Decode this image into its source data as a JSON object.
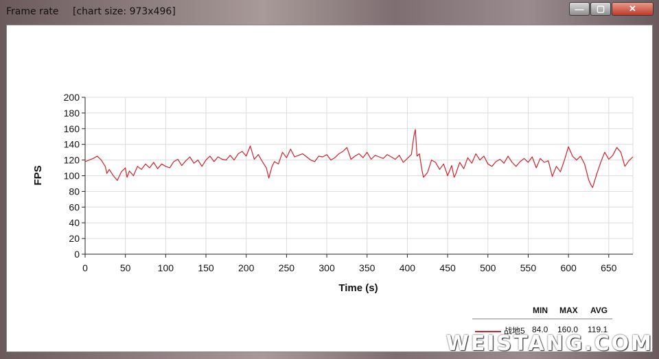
{
  "window": {
    "title": "Frame rate",
    "chart_size_label": "[chart size: 973x496]",
    "minimize_glyph": "—",
    "maximize_glyph": "▢",
    "close_glyph": "✕"
  },
  "chart_data": {
    "type": "line",
    "title": "",
    "xlabel": "Time (s)",
    "ylabel": "FPS",
    "xlim": [
      0,
      680
    ],
    "ylim": [
      0,
      200
    ],
    "xticks": [
      0,
      50,
      100,
      150,
      200,
      250,
      300,
      350,
      400,
      450,
      500,
      550,
      600,
      650
    ],
    "yticks": [
      0,
      20,
      40,
      60,
      80,
      100,
      120,
      140,
      160,
      180,
      200
    ],
    "grid": true,
    "series": [
      {
        "name": "战地5",
        "color": "#d0202a",
        "x": [
          0,
          5,
          10,
          15,
          20,
          25,
          27,
          30,
          35,
          40,
          45,
          50,
          52,
          55,
          60,
          65,
          70,
          75,
          80,
          85,
          90,
          95,
          100,
          105,
          110,
          115,
          120,
          125,
          130,
          135,
          140,
          145,
          150,
          155,
          160,
          165,
          170,
          175,
          180,
          185,
          190,
          195,
          200,
          205,
          210,
          215,
          220,
          225,
          228,
          232,
          235,
          240,
          245,
          250,
          255,
          260,
          265,
          270,
          275,
          280,
          285,
          290,
          295,
          300,
          305,
          310,
          315,
          320,
          325,
          330,
          335,
          340,
          345,
          350,
          355,
          360,
          365,
          370,
          375,
          380,
          385,
          390,
          395,
          400,
          405,
          408,
          410,
          412,
          415,
          418,
          420,
          425,
          430,
          435,
          440,
          445,
          450,
          455,
          458,
          460,
          465,
          470,
          475,
          480,
          485,
          490,
          495,
          500,
          505,
          510,
          515,
          520,
          525,
          530,
          535,
          540,
          545,
          550,
          555,
          560,
          565,
          570,
          575,
          580,
          585,
          590,
          595,
          600,
          605,
          610,
          615,
          620,
          625,
          628,
          630,
          635,
          640,
          645,
          650,
          655,
          660,
          665,
          670,
          675,
          680
        ],
        "y": [
          118,
          120,
          122,
          125,
          120,
          112,
          103,
          108,
          100,
          94,
          105,
          110,
          98,
          106,
          100,
          112,
          108,
          115,
          110,
          117,
          109,
          115,
          112,
          110,
          118,
          121,
          113,
          119,
          124,
          116,
          120,
          112,
          120,
          125,
          118,
          124,
          121,
          120,
          126,
          120,
          128,
          131,
          125,
          138,
          121,
          127,
          118,
          110,
          97,
          112,
          118,
          115,
          130,
          123,
          134,
          124,
          126,
          128,
          124,
          120,
          118,
          125,
          124,
          127,
          120,
          123,
          128,
          131,
          136,
          121,
          125,
          128,
          123,
          130,
          121,
          126,
          124,
          122,
          127,
          124,
          121,
          126,
          117,
          122,
          127,
          150,
          159,
          125,
          128,
          108,
          98,
          104,
          120,
          117,
          108,
          115,
          100,
          113,
          98,
          102,
          117,
          109,
          123,
          116,
          128,
          120,
          125,
          115,
          112,
          118,
          121,
          116,
          125,
          117,
          112,
          118,
          122,
          117,
          124,
          110,
          122,
          117,
          119,
          99,
          112,
          105,
          120,
          137,
          125,
          120,
          125,
          115,
          95,
          88,
          85,
          102,
          117,
          130,
          121,
          126,
          136,
          130,
          112,
          119,
          124
        ],
        "min": "84.0",
        "max": "160.0",
        "avg": "119.1"
      }
    ]
  },
  "legend": {
    "col_min": "MIN",
    "col_max": "MAX",
    "col_avg": "AVG",
    "series_name": "战地5",
    "min": "84.0",
    "max": "160.0",
    "avg": "119.1"
  },
  "watermark": "WEISTANG.COM"
}
